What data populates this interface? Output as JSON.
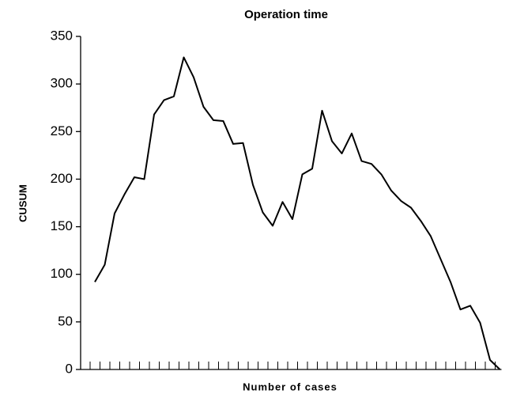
{
  "chart_data": {
    "type": "line",
    "title": "Operation time",
    "x_label": "Number of cases",
    "y_label": "CUSUM",
    "categories": [
      null,
      null,
      null,
      null,
      null,
      null,
      null,
      null,
      null,
      null,
      null,
      null,
      null,
      null,
      null,
      null,
      null,
      null,
      null,
      null,
      null,
      null,
      null,
      null,
      null,
      null,
      null,
      null,
      null,
      null,
      null,
      null,
      null,
      null,
      null,
      null,
      null,
      null,
      null,
      null,
      null,
      null
    ],
    "values": [
      92,
      110,
      164,
      184,
      202,
      200,
      268,
      283,
      287,
      328,
      307,
      276,
      262,
      261,
      237,
      238,
      194,
      165,
      151,
      176,
      158,
      205,
      211,
      272,
      240,
      227,
      248,
      219,
      216,
      205,
      188,
      177,
      170,
      156,
      140,
      116,
      92,
      63,
      67,
      49,
      10,
      0
    ],
    "color": "#000000",
    "ylim": [
      0,
      350
    ],
    "yticks": [
      0,
      50,
      100,
      150,
      200,
      250,
      300,
      350
    ]
  }
}
